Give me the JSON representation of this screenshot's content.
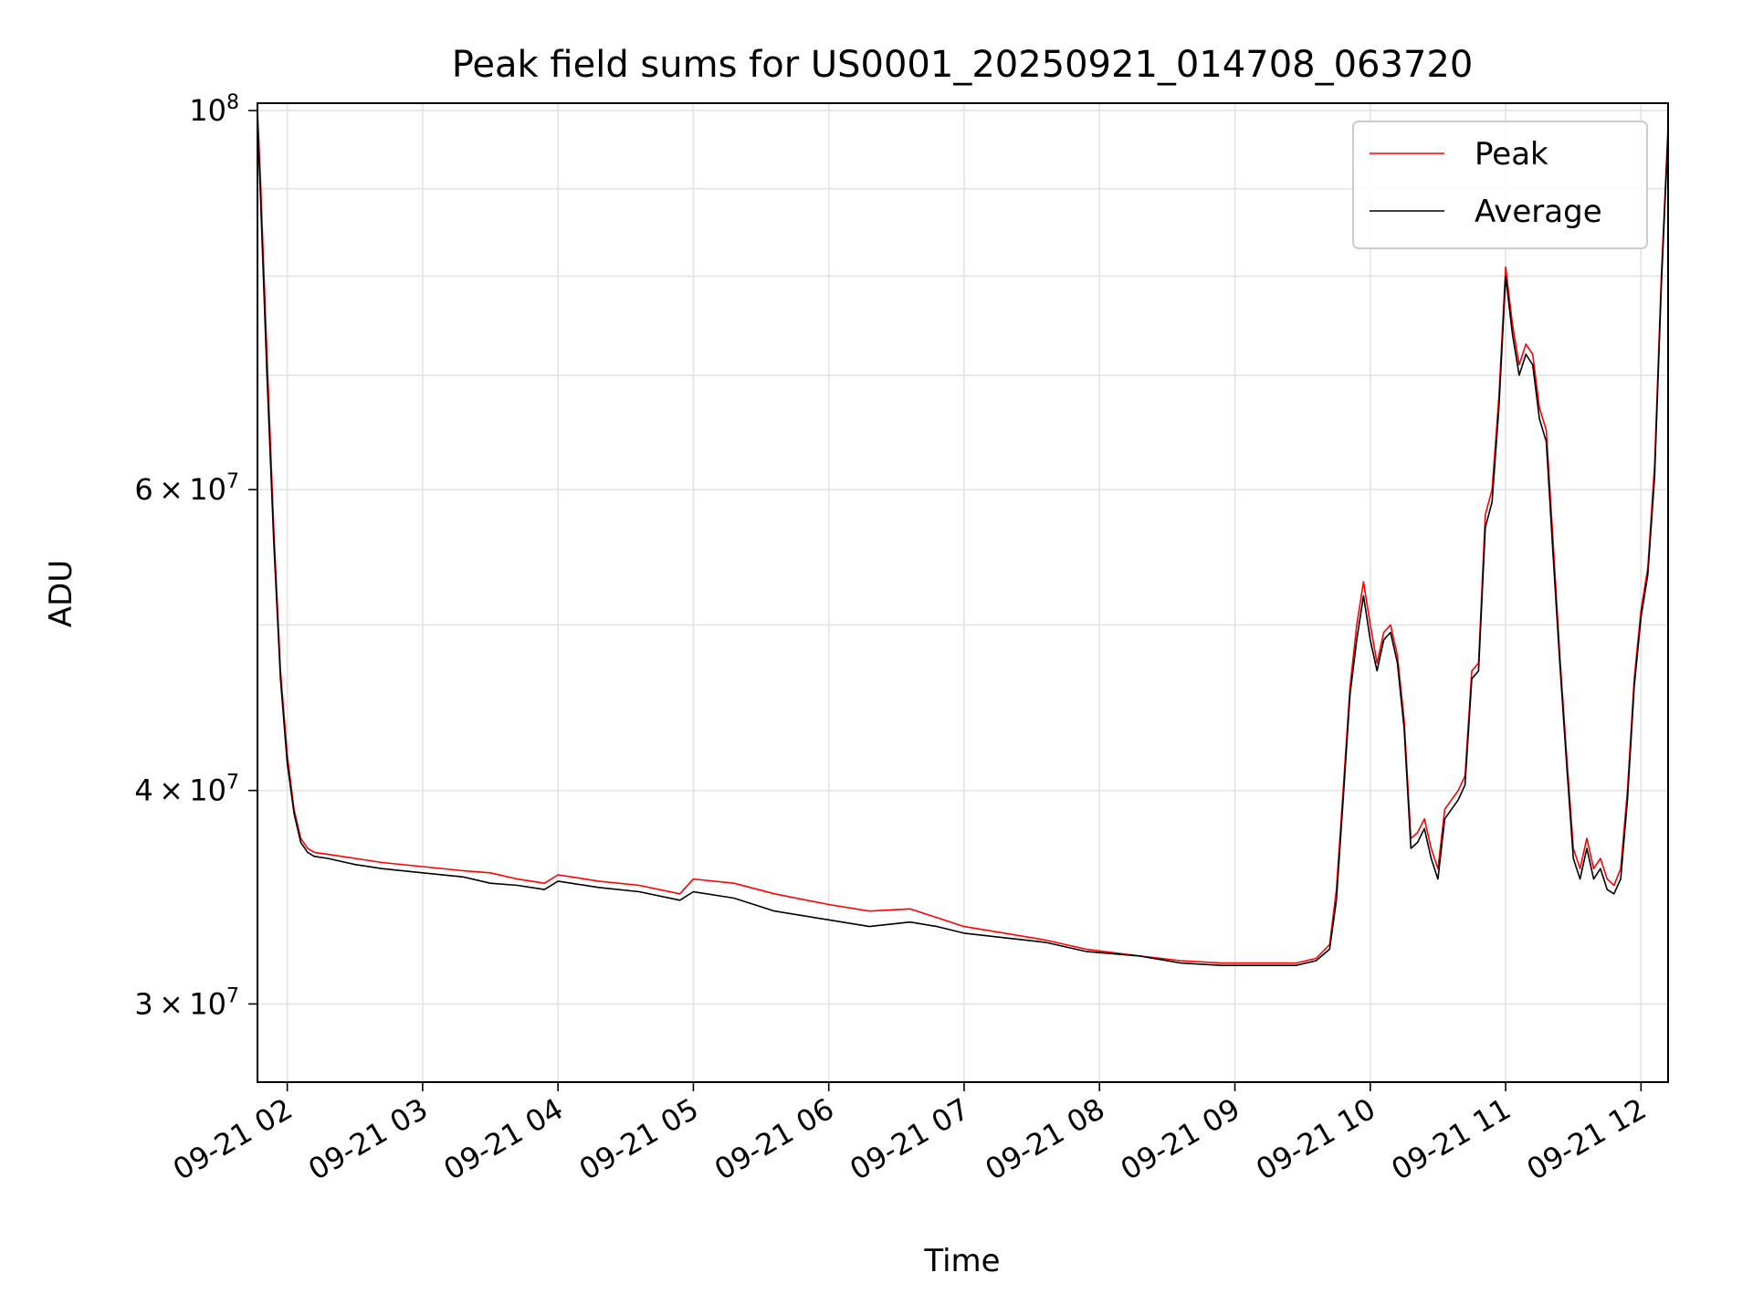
{
  "chart_data": {
    "type": "line",
    "title": "Peak field sums for US0001_20250921_014708_063720",
    "xlabel": "Time",
    "ylabel": "ADU",
    "yscale": "log",
    "grid": true,
    "legend_location": "top-right",
    "xlim_hours": [
      1.78,
      12.2
    ],
    "ylim": [
      27000000,
      101000000
    ],
    "x_ticks": [
      {
        "hour": 2,
        "label": "09-21 02"
      },
      {
        "hour": 3,
        "label": "09-21 03"
      },
      {
        "hour": 4,
        "label": "09-21 04"
      },
      {
        "hour": 5,
        "label": "09-21 05"
      },
      {
        "hour": 6,
        "label": "09-21 06"
      },
      {
        "hour": 7,
        "label": "09-21 07"
      },
      {
        "hour": 8,
        "label": "09-21 08"
      },
      {
        "hour": 9,
        "label": "09-21 09"
      },
      {
        "hour": 10,
        "label": "09-21 10"
      },
      {
        "hour": 11,
        "label": "09-21 11"
      },
      {
        "hour": 12,
        "label": "09-21 12"
      }
    ],
    "y_major_ticks": [
      {
        "value": 30000000,
        "mantissa": "3",
        "exponent": "7"
      },
      {
        "value": 40000000,
        "mantissa": "4",
        "exponent": "7"
      },
      {
        "value": 60000000,
        "mantissa": "6",
        "exponent": "7"
      },
      {
        "value": 100000000,
        "mantissa": "",
        "exponent": "8"
      }
    ],
    "y_minor_grid": [
      50000000,
      70000000,
      80000000,
      90000000
    ],
    "times_symbol": "×",
    "base": "10",
    "series": [
      {
        "name": "Peak",
        "color": "#ff0000",
        "x": [
          1.78,
          1.8,
          1.85,
          1.9,
          1.95,
          2.0,
          2.05,
          2.1,
          2.15,
          2.2,
          2.3,
          2.5,
          2.7,
          3.0,
          3.3,
          3.5,
          3.7,
          3.9,
          4.0,
          4.3,
          4.6,
          4.9,
          5.0,
          5.3,
          5.6,
          6.0,
          6.3,
          6.6,
          6.8,
          7.0,
          7.3,
          7.6,
          7.9,
          8.3,
          8.6,
          8.9,
          9.2,
          9.45,
          9.6,
          9.7,
          9.75,
          9.8,
          9.85,
          9.9,
          9.95,
          10.0,
          10.05,
          10.1,
          10.15,
          10.2,
          10.25,
          10.3,
          10.35,
          10.4,
          10.45,
          10.5,
          10.55,
          10.6,
          10.65,
          10.7,
          10.75,
          10.8,
          10.85,
          10.9,
          10.95,
          11.0,
          11.05,
          11.1,
          11.15,
          11.2,
          11.25,
          11.3,
          11.35,
          11.4,
          11.45,
          11.5,
          11.55,
          11.6,
          11.65,
          11.7,
          11.75,
          11.8,
          11.85,
          11.9,
          11.95,
          12.0,
          12.05,
          12.1,
          12.15,
          12.2
        ],
        "values": [
          100000000,
          92000000,
          72000000,
          57000000,
          47000000,
          42000000,
          39000000,
          37500000,
          37000000,
          36800000,
          36700000,
          36500000,
          36300000,
          36100000,
          35900000,
          35800000,
          35500000,
          35300000,
          35700000,
          35400000,
          35200000,
          34800000,
          35500000,
          35300000,
          34800000,
          34300000,
          34000000,
          34100000,
          33700000,
          33300000,
          33000000,
          32700000,
          32300000,
          32000000,
          31800000,
          31700000,
          31700000,
          31700000,
          31900000,
          32500000,
          35000000,
          40000000,
          46000000,
          50000000,
          53000000,
          50000000,
          47500000,
          49500000,
          50000000,
          48000000,
          44000000,
          37500000,
          37800000,
          38500000,
          37000000,
          36000000,
          39000000,
          39500000,
          40000000,
          40800000,
          47000000,
          47500000,
          58000000,
          60000000,
          68000000,
          81000000,
          75000000,
          71000000,
          73000000,
          72000000,
          67000000,
          65000000,
          56000000,
          48000000,
          42000000,
          37000000,
          36000000,
          37500000,
          36000000,
          36500000,
          35500000,
          35200000,
          36000000,
          40000000,
          46500000,
          51000000,
          54000000,
          62000000,
          80000000,
          98000000
        ]
      },
      {
        "name": "Average",
        "color": "#000000",
        "x": [
          1.78,
          1.8,
          1.85,
          1.9,
          1.95,
          2.0,
          2.05,
          2.1,
          2.15,
          2.2,
          2.3,
          2.5,
          2.7,
          3.0,
          3.3,
          3.5,
          3.7,
          3.9,
          4.0,
          4.3,
          4.6,
          4.9,
          5.0,
          5.3,
          5.6,
          6.0,
          6.3,
          6.6,
          6.8,
          7.0,
          7.3,
          7.6,
          7.9,
          8.3,
          8.6,
          8.9,
          9.2,
          9.45,
          9.6,
          9.7,
          9.75,
          9.8,
          9.85,
          9.9,
          9.95,
          10.0,
          10.05,
          10.1,
          10.15,
          10.2,
          10.25,
          10.3,
          10.35,
          10.4,
          10.45,
          10.5,
          10.55,
          10.6,
          10.65,
          10.7,
          10.75,
          10.8,
          10.85,
          10.9,
          10.95,
          11.0,
          11.05,
          11.1,
          11.15,
          11.2,
          11.25,
          11.3,
          11.35,
          11.4,
          11.45,
          11.5,
          11.55,
          11.6,
          11.65,
          11.7,
          11.75,
          11.8,
          11.85,
          11.9,
          11.95,
          12.0,
          12.05,
          12.1,
          12.15,
          12.2
        ],
        "values": [
          99000000,
          90000000,
          70000000,
          56000000,
          46500000,
          41500000,
          38800000,
          37300000,
          36800000,
          36600000,
          36500000,
          36200000,
          36000000,
          35800000,
          35600000,
          35300000,
          35200000,
          35000000,
          35400000,
          35100000,
          34900000,
          34500000,
          34900000,
          34600000,
          34000000,
          33600000,
          33300000,
          33500000,
          33300000,
          33000000,
          32800000,
          32600000,
          32200000,
          32000000,
          31700000,
          31600000,
          31600000,
          31600000,
          31800000,
          32300000,
          34500000,
          39500000,
          45500000,
          49000000,
          52000000,
          49000000,
          47000000,
          49000000,
          49500000,
          47500000,
          43500000,
          37000000,
          37300000,
          38000000,
          36500000,
          35500000,
          38500000,
          39000000,
          39500000,
          40300000,
          46500000,
          47000000,
          57000000,
          59000000,
          67000000,
          80000000,
          74000000,
          70000000,
          72000000,
          71000000,
          66000000,
          64000000,
          55000000,
          47500000,
          41500000,
          36500000,
          35500000,
          37000000,
          35500000,
          36000000,
          35000000,
          34800000,
          35500000,
          39500000,
          46000000,
          50500000,
          53500000,
          61000000,
          79000000,
          97000000
        ]
      }
    ]
  }
}
